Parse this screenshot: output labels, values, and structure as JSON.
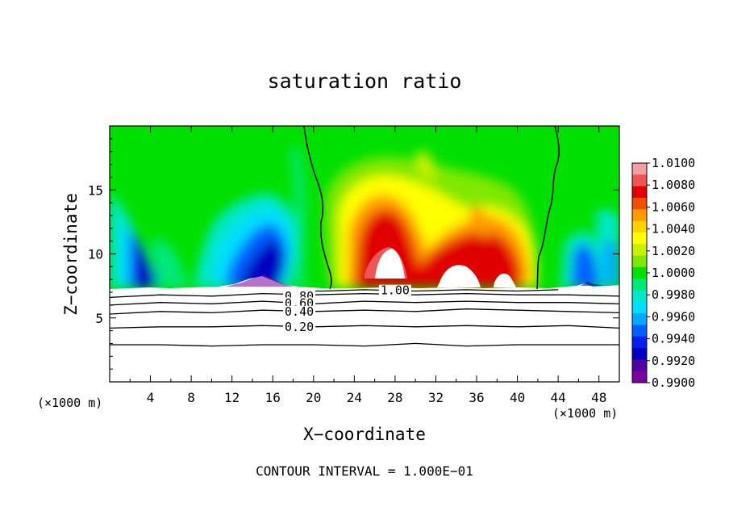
{
  "chart_data": {
    "type": "heatmap",
    "title": "saturation ratio",
    "xlabel": "X−coordinate",
    "ylabel": "Z−coordinate",
    "x_unit_label": "(×1000 m)",
    "footnote": "CONTOUR INTERVAL = 1.000E−01",
    "xlim": [
      0,
      50
    ],
    "ylim": [
      0,
      20
    ],
    "x_ticks": [
      4,
      8,
      12,
      16,
      20,
      24,
      28,
      32,
      36,
      40,
      44,
      48
    ],
    "y_ticks": [
      5,
      10,
      15
    ],
    "colorbar": {
      "ticks": [
        "1.0100",
        "1.0080",
        "1.0060",
        "1.0040",
        "1.0020",
        "1.0000",
        "0.9980",
        "0.9960",
        "0.9940",
        "0.9920",
        "0.9900"
      ],
      "colors": [
        "#f5a0a0",
        "#ee5555",
        "#e00000",
        "#ee5000",
        "#ff9a00",
        "#ffd200",
        "#ffff00",
        "#c8f000",
        "#80e800",
        "#00e000",
        "#00e87a",
        "#00e8c8",
        "#00ddff",
        "#00aaff",
        "#0060ff",
        "#0020ee",
        "#0000c0",
        "#5000a0",
        "#7a00a0"
      ]
    },
    "contour_labels": [
      "1.00",
      "0.80",
      "0.60",
      "0.40",
      "0.20"
    ],
    "series": [
      {
        "name": "",
        "color": "#000000",
        "x": [
          0,
          5,
          10,
          15,
          20,
          25,
          30,
          35,
          40,
          45,
          50
        ],
        "y": [
          2.9,
          2.9,
          2.8,
          2.9,
          2.9,
          2.8,
          3.0,
          2.8,
          2.9,
          2.9,
          2.9
        ]
      },
      {
        "name": "0.20",
        "color": "#000000",
        "x": [
          0,
          5,
          10,
          15,
          20,
          25,
          30,
          35,
          40,
          45,
          50
        ],
        "y": [
          4.2,
          4.3,
          4.3,
          4.4,
          4.3,
          4.4,
          4.3,
          4.4,
          4.3,
          4.4,
          4.2
        ]
      },
      {
        "name": "0.40",
        "color": "#000000",
        "x": [
          0,
          5,
          10,
          15,
          20,
          25,
          30,
          35,
          40,
          45,
          50
        ],
        "y": [
          5.3,
          5.5,
          5.4,
          5.6,
          5.5,
          5.6,
          5.5,
          5.7,
          5.6,
          5.5,
          5.4
        ]
      },
      {
        "name": "0.60",
        "color": "#000000",
        "x": [
          0,
          5,
          10,
          15,
          20,
          25,
          30,
          35,
          40,
          45,
          50
        ],
        "y": [
          6.0,
          6.2,
          6.1,
          6.3,
          6.1,
          6.3,
          6.2,
          6.3,
          6.2,
          6.2,
          6.1
        ]
      },
      {
        "name": "0.80",
        "color": "#000000",
        "x": [
          0,
          5,
          10,
          15,
          20,
          25,
          30,
          35,
          40,
          45,
          50
        ],
        "y": [
          6.6,
          6.8,
          6.7,
          6.9,
          6.8,
          6.9,
          6.8,
          6.9,
          6.8,
          6.8,
          6.7
        ]
      },
      {
        "name": "1.00",
        "color": "#000000",
        "x": [
          19,
          21,
          25,
          30,
          35,
          40,
          44
        ],
        "y": [
          7.1,
          7.1,
          7.2,
          7.1,
          7.2,
          7.1,
          7.2
        ]
      }
    ]
  }
}
